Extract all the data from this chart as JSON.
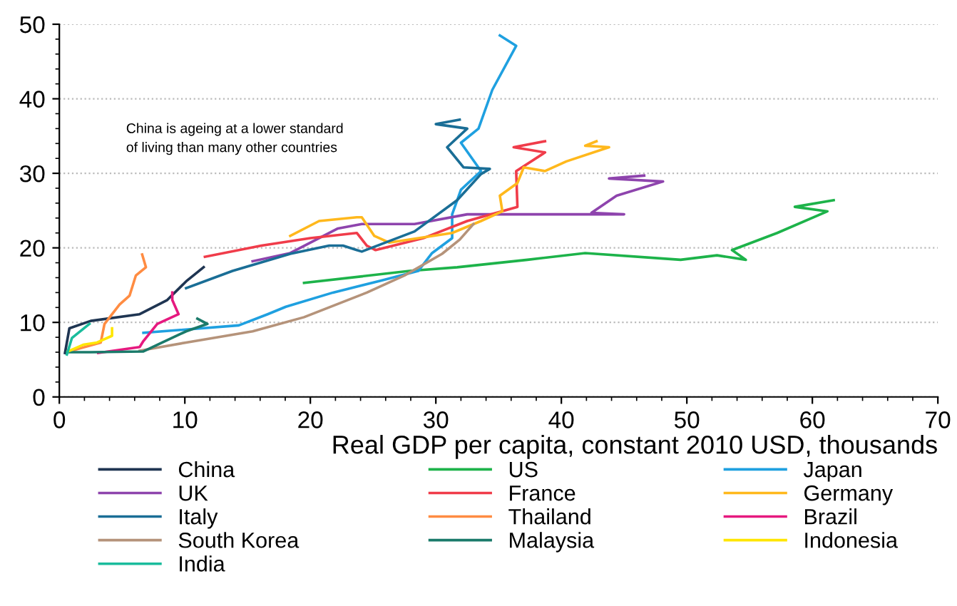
{
  "chart_data": {
    "type": "line",
    "xlabel": "Real GDP per capita, constant 2010 USD, thousands",
    "annotations": [
      "China is ageing at a lower standard of living than many other countries"
    ],
    "xlim": [
      0,
      70
    ],
    "ylim": [
      0,
      50
    ],
    "xticks": [
      0,
      10,
      20,
      30,
      40,
      50,
      60,
      70
    ],
    "yticks": [
      0,
      10,
      20,
      30,
      40,
      50
    ],
    "grid": "y",
    "legend": "bottom",
    "marker": "none",
    "line_style": "solid",
    "series": [
      {
        "name": "China",
        "color": "#1f3552",
        "x": [
          0.45,
          0.8,
          2.5,
          6.4,
          8.6,
          10.1,
          11.5
        ],
        "values": [
          5.9,
          9.2,
          10.2,
          11.1,
          13,
          15.5,
          17.4
        ]
      },
      {
        "name": "US",
        "color": "#1db34a",
        "x": [
          19.5,
          27.9,
          31.7,
          37.3,
          41.9,
          49.5,
          52.4,
          54.7,
          53.6,
          57.2,
          61.2,
          58.6,
          61.7
        ],
        "values": [
          15.3,
          16.9,
          17.4,
          18.4,
          19.3,
          18.4,
          19,
          18.4,
          19.7,
          22,
          24.9,
          25.5,
          26.4
        ]
      },
      {
        "name": "Japan",
        "color": "#1fa0e0",
        "x": [
          6.7,
          14.3,
          16.6,
          18.05,
          21.8,
          25.6,
          28.6,
          29.7,
          31.3,
          31.3,
          32,
          33.6,
          32,
          33.4,
          34.5,
          36.4,
          35.1
        ],
        "values": [
          8.6,
          9.6,
          11.1,
          12.1,
          14,
          15.6,
          16.9,
          19.3,
          21.3,
          24.5,
          27.8,
          30.3,
          34.1,
          36,
          41.2,
          47.1,
          48.5
        ]
      },
      {
        "name": "UK",
        "color": "#8e44ad",
        "x": [
          15.4,
          18.4,
          22.2,
          24.1,
          28.3,
          32.5,
          45,
          42.4,
          44.4,
          48.1,
          43.8,
          46.6
        ],
        "values": [
          18.2,
          19.3,
          22.6,
          23.2,
          23.2,
          24.5,
          24.5,
          24.7,
          27,
          28.9,
          29.3,
          29.7
        ]
      },
      {
        "name": "France",
        "color": "#f03c4a",
        "x": [
          11.6,
          16.1,
          20,
          23.7,
          24.5,
          25.2,
          29,
          32.5,
          36.5,
          36.4,
          38.7,
          36.2,
          38.7
        ],
        "values": [
          18.8,
          20.3,
          21.3,
          22,
          20.3,
          19.7,
          21.3,
          23.6,
          25.5,
          30.3,
          32.8,
          33.5,
          34.3
        ]
      },
      {
        "name": "Germany",
        "color": "#ffb81c",
        "x": [
          18.4,
          20.7,
          23.7,
          24.1,
          25.1,
          26.3,
          31.3,
          33.6,
          35.3,
          35.1,
          36.5,
          37,
          38.7,
          40.4,
          43.8,
          41.9,
          42.8
        ],
        "values": [
          21.6,
          23.6,
          24.1,
          24.1,
          21.6,
          20.7,
          22,
          23.6,
          24.9,
          27,
          28.7,
          30.8,
          30.3,
          31.6,
          33.5,
          33.7,
          34.3
        ]
      },
      {
        "name": "Italy",
        "color": "#1a6e96",
        "x": [
          10.1,
          13.8,
          18.4,
          21.5,
          22.6,
          23.7,
          24.1,
          28.3,
          31.7,
          33.6,
          34.3,
          32.2,
          30.9,
          32.5,
          30,
          31.9
        ],
        "values": [
          14.6,
          16.9,
          19.2,
          20.3,
          20.3,
          19.7,
          19.5,
          22.2,
          26.4,
          29.9,
          30.6,
          30.8,
          33.5,
          36,
          36.6,
          37.2
        ]
      },
      {
        "name": "Thailand",
        "color": "#ff8c42",
        "x": [
          1.2,
          3.3,
          3.6,
          4.8,
          5.6,
          6.1,
          6.9,
          6.6
        ],
        "values": [
          6.3,
          7.3,
          9.8,
          12.4,
          13.6,
          16.3,
          17.4,
          19.1
        ]
      },
      {
        "name": "Brazil",
        "color": "#e6197f",
        "x": [
          3.1,
          6.4,
          6.7,
          7.8,
          9.5,
          9,
          9
        ],
        "values": [
          5.9,
          6.7,
          7.5,
          9.8,
          11.1,
          13,
          14
        ]
      },
      {
        "name": "South Korea",
        "color": "#b5937a",
        "x": [
          6.4,
          10.1,
          15.4,
          19.5,
          24.5,
          27.5,
          30.5,
          31.9,
          33
        ],
        "values": [
          6.2,
          7.3,
          8.8,
          10.7,
          14,
          16.3,
          19.2,
          21.1,
          23.2
        ]
      },
      {
        "name": "Malaysia",
        "color": "#1a7a6a",
        "x": [
          0.6,
          2.5,
          6.7,
          8.2,
          10.1,
          11.8,
          11
        ],
        "values": [
          6,
          6,
          6.1,
          7.3,
          8.8,
          9.8,
          10.5
        ]
      },
      {
        "name": "Indonesia",
        "color": "#ffe600",
        "x": [
          0.7,
          1.9,
          3,
          4.2,
          4.2
        ],
        "values": [
          6.1,
          7,
          7.3,
          8.2,
          9.2
        ]
      },
      {
        "name": "India",
        "color": "#1abc9c",
        "x": [
          0.6,
          1,
          2.4
        ],
        "values": [
          5.7,
          7.9,
          9.8
        ]
      }
    ]
  }
}
